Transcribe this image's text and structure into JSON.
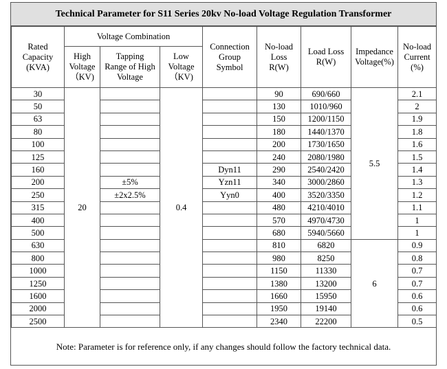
{
  "title": "Technical Parameter for S11 Series 20kv No-load Voltage Regulation Transformer",
  "headers": {
    "rated_capacity": [
      "Rated",
      "Capacity",
      "(KVA)"
    ],
    "voltage_combination": "Voltage Combination",
    "high_voltage": [
      "High",
      "Voltage",
      "（KV)"
    ],
    "tapping_range": [
      "Tapping",
      "Range of High",
      "Voltage"
    ],
    "low_voltage": [
      "Low",
      "Voltage",
      "（KV)"
    ],
    "connection_group": [
      "Connection",
      "Group",
      "Symbol"
    ],
    "noload_loss": [
      "No-load",
      "Loss",
      "R(W)"
    ],
    "load_loss": [
      "Load Loss",
      "R(W)"
    ],
    "impedance_voltage": [
      "Impedance",
      "Voltage(%)"
    ],
    "noload_current": [
      "No-load",
      "Current",
      "(%)"
    ]
  },
  "rows": [
    {
      "capacity": "30",
      "noload_loss": "90",
      "load_loss": "690/660",
      "current": "2.1"
    },
    {
      "capacity": "50",
      "noload_loss": "130",
      "load_loss": "1010/960",
      "current": "2"
    },
    {
      "capacity": "63",
      "noload_loss": "150",
      "load_loss": "1200/1150",
      "current": "1.9"
    },
    {
      "capacity": "80",
      "noload_loss": "180",
      "load_loss": "1440/1370",
      "current": "1.8"
    },
    {
      "capacity": "100",
      "noload_loss": "200",
      "load_loss": "1730/1650",
      "current": "1.6"
    },
    {
      "capacity": "125",
      "noload_loss": "240",
      "load_loss": "2080/1980",
      "current": "1.5"
    },
    {
      "capacity": "160",
      "tapping": "",
      "connection": "Dyn11",
      "noload_loss": "290",
      "load_loss": "2540/2420",
      "current": "1.4"
    },
    {
      "capacity": "200",
      "tapping": "±5%",
      "connection": "Yzn11",
      "noload_loss": "340",
      "load_loss": "3000/2860",
      "current": "1.3"
    },
    {
      "capacity": "250",
      "tapping": "±2x2.5%",
      "connection": "Yyn0",
      "noload_loss": "400",
      "load_loss": "3520/3350",
      "current": "1.2"
    },
    {
      "capacity": "315",
      "noload_loss": "480",
      "load_loss": "4210/4010",
      "current": "1.1"
    },
    {
      "capacity": "400",
      "noload_loss": "570",
      "load_loss": "4970/4730",
      "current": "1"
    },
    {
      "capacity": "500",
      "noload_loss": "680",
      "load_loss": "5940/5660",
      "current": "1"
    },
    {
      "capacity": "630",
      "noload_loss": "810",
      "load_loss": "6820",
      "current": "0.9"
    },
    {
      "capacity": "800",
      "noload_loss": "980",
      "load_loss": "8250",
      "current": "0.8"
    },
    {
      "capacity": "1000",
      "noload_loss": "1150",
      "load_loss": "11330",
      "current": "0.7"
    },
    {
      "capacity": "1250",
      "noload_loss": "1380",
      "load_loss": "13200",
      "current": "0.7"
    },
    {
      "capacity": "1600",
      "noload_loss": "1660",
      "load_loss": "15950",
      "current": "0.6"
    },
    {
      "capacity": "2000",
      "noload_loss": "1950",
      "load_loss": "19140",
      "current": "0.6"
    },
    {
      "capacity": "2500",
      "noload_loss": "2340",
      "load_loss": "22200",
      "current": "0.5"
    }
  ],
  "merged": {
    "high_voltage": "20",
    "low_voltage": "0.4",
    "impedance_small": "5.5",
    "impedance_large": "6"
  },
  "note": "Note: Parameter is for reference only, if any changes should follow the factory technical data."
}
